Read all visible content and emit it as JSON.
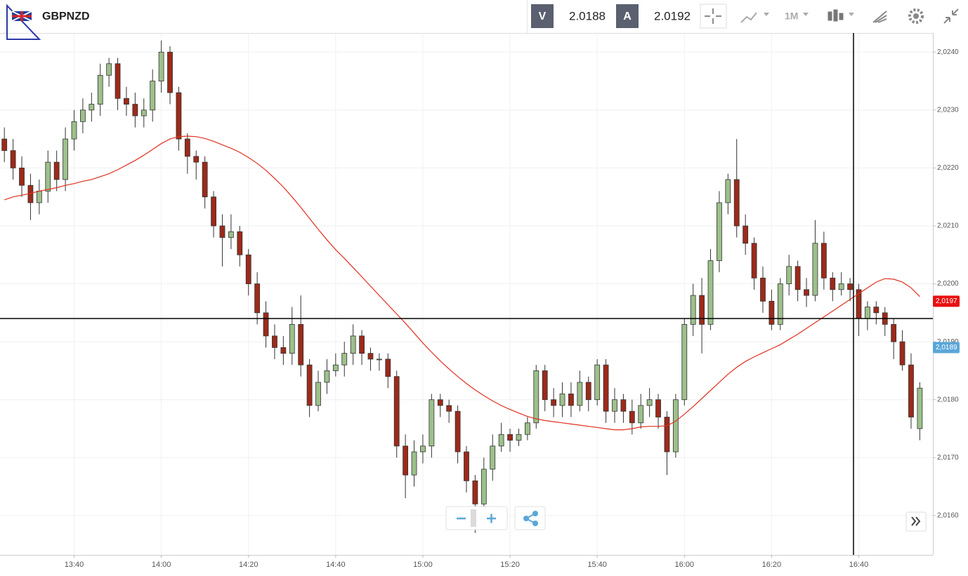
{
  "header": {
    "symbol": "GBPNZD",
    "bid_label": "V",
    "bid": "2.0188",
    "ask_label": "A",
    "ask": "2.0192",
    "timeframe": "1M"
  },
  "chart_data": {
    "type": "candlestick",
    "up_color": "#9dc08b",
    "down_color": "#9c2a1a",
    "grid": true,
    "x": [
      "13:24",
      "13:26",
      "13:28",
      "13:30",
      "13:32",
      "13:34",
      "13:36",
      "13:38",
      "13:40",
      "13:42",
      "13:44",
      "13:46",
      "13:48",
      "13:50",
      "13:52",
      "13:54",
      "13:56",
      "13:58",
      "14:00",
      "14:02",
      "14:04",
      "14:06",
      "14:08",
      "14:10",
      "14:12",
      "14:14",
      "14:16",
      "14:18",
      "14:20",
      "14:22",
      "14:24",
      "14:26",
      "14:28",
      "14:30",
      "14:32",
      "14:34",
      "14:36",
      "14:38",
      "14:40",
      "14:42",
      "14:44",
      "14:46",
      "14:48",
      "14:50",
      "14:52",
      "14:54",
      "14:56",
      "14:58",
      "15:00",
      "15:02",
      "15:04",
      "15:06",
      "15:08",
      "15:10",
      "15:12",
      "15:14",
      "15:16",
      "15:18",
      "15:20",
      "15:22",
      "15:24",
      "15:26",
      "15:28",
      "15:30",
      "15:32",
      "15:34",
      "15:36",
      "15:38",
      "15:40",
      "15:42",
      "15:44",
      "15:46",
      "15:48",
      "15:50",
      "15:52",
      "15:54",
      "15:56",
      "15:58",
      "16:00",
      "16:02",
      "16:04",
      "16:06",
      "16:08",
      "16:10",
      "16:12",
      "16:14",
      "16:16",
      "16:18",
      "16:20",
      "16:22",
      "16:24",
      "16:26",
      "16:28",
      "16:30",
      "16:32",
      "16:34",
      "16:36",
      "16:38",
      "16:40",
      "16:42",
      "16:44",
      "16:46",
      "16:48",
      "16:50",
      "16:52",
      "16:54"
    ],
    "open": [
      2.0225,
      2.0223,
      2.022,
      2.0217,
      2.0214,
      2.0216,
      2.0221,
      2.0218,
      2.0225,
      2.0228,
      2.023,
      2.0231,
      2.0236,
      2.0238,
      2.0232,
      2.0231,
      2.0229,
      2.023,
      2.0235,
      2.024,
      2.0233,
      2.0225,
      2.0222,
      2.0221,
      2.0215,
      2.021,
      2.0208,
      2.0209,
      2.0205,
      2.02,
      2.0195,
      2.0191,
      2.0189,
      2.0188,
      2.0193,
      2.0186,
      2.0179,
      2.0183,
      2.0185,
      2.0186,
      2.0188,
      2.0191,
      2.0188,
      2.0187,
      2.0187,
      2.0184,
      2.0172,
      2.0167,
      2.0171,
      2.0172,
      2.018,
      2.0179,
      2.0178,
      2.0171,
      2.0166,
      2.0162,
      2.0168,
      2.0172,
      2.0174,
      2.0173,
      2.0174,
      2.0176,
      2.0185,
      2.018,
      2.0179,
      2.0181,
      2.0179,
      2.0183,
      2.018,
      2.0186,
      2.0178,
      2.018,
      2.0178,
      2.0176,
      2.0179,
      2.018,
      2.0177,
      2.0171,
      2.018,
      2.0193,
      2.0198,
      2.0193,
      2.0204,
      2.0214,
      2.0218,
      2.021,
      2.0207,
      2.0201,
      2.0197,
      2.0193,
      2.02,
      2.0203,
      2.0199,
      2.0198,
      2.0207,
      2.0201,
      2.0199,
      2.02,
      2.0199,
      2.0194,
      2.0196,
      2.0195,
      2.0193,
      2.019,
      2.0186,
      2.0175
    ],
    "high": [
      2.0227,
      2.0225,
      2.0222,
      2.0219,
      2.0218,
      2.0223,
      2.0223,
      2.0227,
      2.023,
      2.0232,
      2.0233,
      2.0238,
      2.0239,
      2.0239,
      2.0234,
      2.0233,
      2.0232,
      2.0237,
      2.0242,
      2.0241,
      2.0234,
      2.0226,
      2.0223,
      2.0222,
      2.0216,
      2.0212,
      2.0212,
      2.021,
      2.0206,
      2.0202,
      2.0197,
      2.0193,
      2.0191,
      2.0196,
      2.0198,
      2.0187,
      2.0185,
      2.0187,
      2.0188,
      2.019,
      2.0193,
      2.0192,
      2.0189,
      2.0188,
      2.0188,
      2.0185,
      2.0174,
      2.0173,
      2.0174,
      2.0181,
      2.0181,
      2.018,
      2.0179,
      2.0172,
      2.0167,
      2.017,
      2.0174,
      2.0176,
      2.0175,
      2.0175,
      2.0177,
      2.0186,
      2.0186,
      2.0182,
      2.0183,
      2.0183,
      2.0185,
      2.0184,
      2.0187,
      2.0187,
      2.0182,
      2.0181,
      2.018,
      2.0181,
      2.0182,
      2.0181,
      2.0178,
      2.0181,
      2.0194,
      2.02,
      2.0201,
      2.0206,
      2.0216,
      2.0219,
      2.0225,
      2.0212,
      2.0208,
      2.0203,
      2.0199,
      2.0201,
      2.0205,
      2.0204,
      2.0201,
      2.0211,
      2.0209,
      2.0202,
      2.0202,
      2.0201,
      2.02,
      2.0197,
      2.0197,
      2.0196,
      2.0194,
      2.0192,
      2.0188,
      2.0183
    ],
    "low": [
      2.0221,
      2.0218,
      2.0215,
      2.0211,
      2.0212,
      2.0214,
      2.0216,
      2.0216,
      2.0223,
      2.0226,
      2.0228,
      2.0229,
      2.0234,
      2.023,
      2.0229,
      2.0227,
      2.0227,
      2.0228,
      2.0233,
      2.0231,
      2.0223,
      2.0219,
      2.0218,
      2.0213,
      2.0208,
      2.0203,
      2.0206,
      2.0203,
      2.0198,
      2.0193,
      2.0189,
      2.0187,
      2.0186,
      2.0186,
      2.0184,
      2.0177,
      2.0178,
      2.0181,
      2.0184,
      2.0184,
      2.0186,
      2.0186,
      2.0185,
      2.0185,
      2.0182,
      2.017,
      2.0163,
      2.0165,
      2.0169,
      2.017,
      2.0177,
      2.0176,
      2.0169,
      2.0164,
      2.0157,
      2.0161,
      2.0166,
      2.0171,
      2.0171,
      2.0172,
      2.0173,
      2.0175,
      2.0178,
      2.0177,
      2.0177,
      2.0177,
      2.0178,
      2.0178,
      2.0179,
      2.0176,
      2.0176,
      2.0176,
      2.0174,
      2.0175,
      2.0177,
      2.0175,
      2.0167,
      2.017,
      2.0179,
      2.0191,
      2.0188,
      2.0192,
      2.0202,
      2.0212,
      2.0208,
      2.0205,
      2.0199,
      2.0195,
      2.0192,
      2.0192,
      2.0198,
      2.0197,
      2.0196,
      2.0197,
      2.0199,
      2.0197,
      2.0198,
      2.0197,
      2.0191,
      2.0192,
      2.0193,
      2.0191,
      2.0187,
      2.0185,
      2.0175,
      2.0173
    ],
    "close": [
      2.0223,
      2.022,
      2.0217,
      2.0214,
      2.0216,
      2.0221,
      2.0218,
      2.0225,
      2.0228,
      2.023,
      2.0231,
      2.0236,
      2.0238,
      2.0232,
      2.0231,
      2.0229,
      2.023,
      2.0235,
      2.024,
      2.0233,
      2.0225,
      2.0222,
      2.0221,
      2.0215,
      2.021,
      2.0208,
      2.0209,
      2.0205,
      2.02,
      2.0195,
      2.0191,
      2.0189,
      2.0188,
      2.0193,
      2.0186,
      2.0179,
      2.0183,
      2.0185,
      2.0186,
      2.0188,
      2.0191,
      2.0188,
      2.0187,
      2.0187,
      2.0184,
      2.0172,
      2.0167,
      2.0171,
      2.0172,
      2.018,
      2.0179,
      2.0178,
      2.0171,
      2.0166,
      2.0162,
      2.0168,
      2.0172,
      2.0174,
      2.0173,
      2.0174,
      2.0176,
      2.0185,
      2.018,
      2.0179,
      2.0181,
      2.0179,
      2.0183,
      2.018,
      2.0186,
      2.0178,
      2.018,
      2.0178,
      2.0176,
      2.0179,
      2.018,
      2.0177,
      2.0171,
      2.018,
      2.0193,
      2.0198,
      2.0193,
      2.0204,
      2.0214,
      2.0218,
      2.021,
      2.0207,
      2.0201,
      2.0197,
      2.0193,
      2.02,
      2.0203,
      2.0199,
      2.0198,
      2.0207,
      2.0201,
      2.0199,
      2.02,
      2.0199,
      2.0194,
      2.0196,
      2.0195,
      2.0193,
      2.019,
      2.0186,
      2.0177,
      2.0182
    ],
    "overlay": {
      "color": "#e03020",
      "values": [
        2.02145,
        2.0215,
        2.02153,
        2.02156,
        2.0216,
        2.02163,
        2.02166,
        2.0217,
        2.02173,
        2.02177,
        2.0218,
        2.02185,
        2.0219,
        2.02197,
        2.02205,
        2.02213,
        2.02222,
        2.02232,
        2.02242,
        2.0225,
        2.02254,
        2.02255,
        2.02254,
        2.02251,
        2.02246,
        2.0224,
        2.02234,
        2.02227,
        2.02218,
        2.02208,
        2.02196,
        2.02182,
        2.02167,
        2.0215,
        2.02132,
        2.02113,
        2.02094,
        2.02076,
        2.02059,
        2.02044,
        2.02028,
        2.02012,
        2.01996,
        2.0198,
        2.01964,
        2.01948,
        2.01932,
        2.01915,
        2.01898,
        2.01882,
        2.01867,
        2.01853,
        2.0184,
        2.01828,
        2.01817,
        2.01807,
        2.01798,
        2.0179,
        2.01783,
        2.01777,
        2.01771,
        2.01767,
        2.01764,
        2.01762,
        2.0176,
        2.01758,
        2.01756,
        2.01754,
        2.01752,
        2.0175,
        2.01748,
        2.01748,
        2.0175,
        2.01753,
        2.01754,
        2.01754,
        2.01755,
        2.01763,
        2.01775,
        2.01788,
        2.01802,
        2.01816,
        2.0183,
        2.01844,
        2.01856,
        2.01866,
        2.01874,
        2.01881,
        2.01888,
        2.01895,
        2.01904,
        2.01913,
        2.01923,
        2.01933,
        2.01943,
        2.01953,
        2.01963,
        2.01973,
        2.01983,
        2.01993,
        2.02003,
        2.02009,
        2.02008,
        2.02003,
        2.01993,
        2.01978
      ]
    },
    "xlim": [
      "13:23",
      "16:57"
    ],
    "xticks": [
      "13:40",
      "14:00",
      "14:20",
      "14:40",
      "15:00",
      "15:20",
      "15:40",
      "16:00",
      "16:20",
      "16:40"
    ],
    "ylim": [
      2.01532,
      2.02433
    ],
    "yticks": [
      {
        "value": 2.016,
        "label": "2,0160"
      },
      {
        "value": 2.017,
        "label": "2,0170"
      },
      {
        "value": 2.018,
        "label": "2,0180"
      },
      {
        "value": 2.019,
        "label": "2,0190"
      },
      {
        "value": 2.02,
        "label": "2,0200"
      },
      {
        "value": 2.021,
        "label": "2,0210"
      },
      {
        "value": 2.022,
        "label": "2,0220"
      },
      {
        "value": 2.023,
        "label": "2,0230"
      },
      {
        "value": 2.024,
        "label": "2,0240"
      }
    ],
    "price_tags": [
      {
        "value": 2.0197,
        "label": "2,0197",
        "color": "#e81010"
      },
      {
        "value": 2.0189,
        "label": "2,0189",
        "color": "#5aa6d8"
      }
    ]
  }
}
